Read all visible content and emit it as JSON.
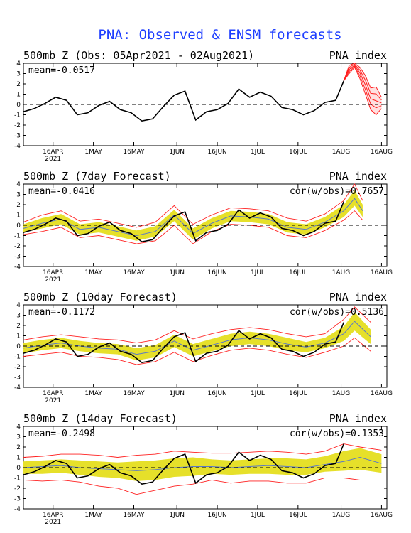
{
  "title": "PNA: Observed & ENSM forecasts",
  "colors": {
    "title": "#1f3fff",
    "observed": "#000000",
    "ensemble_mean": "#5a78c8",
    "spread_band": "#e6e02a",
    "extreme_members": "#ff2020"
  },
  "x_ticks": [
    "16APR",
    "1MAY",
    "16MAY",
    "1JUN",
    "16JUN",
    "1JUL",
    "16JUL",
    "1AUG",
    "16AUG"
  ],
  "year_label": "2021",
  "panels": [
    {
      "title": "500mb Z (Obs: 05Apr2021 - 02Aug2021)",
      "index_label": "PNA index",
      "mean_label": "mean=-0.0517",
      "cor_label": ""
    },
    {
      "title": "500mb Z (7day Forecast)",
      "index_label": "PNA index",
      "mean_label": "mean=-0.0416",
      "cor_label": "cor(w/obs)=0.7657"
    },
    {
      "title": "500mb Z (10day Forecast)",
      "index_label": "PNA index",
      "mean_label": "mean=-0.1172",
      "cor_label": "cor(w/obs)=0.5136"
    },
    {
      "title": "500mb Z (14day Forecast)",
      "index_label": "PNA index",
      "mean_label": "mean=-0.2498",
      "cor_label": "cor(w/obs)=0.1353"
    }
  ],
  "chart_data": {
    "type": "line",
    "ylim": [
      -4,
      4
    ],
    "y_ticks": [
      4,
      3,
      2,
      1,
      0,
      -1,
      -2,
      -3,
      -4
    ],
    "x_range": [
      "2021-04-05",
      "2021-08-18"
    ],
    "observed": {
      "name": "Obs",
      "dates": [
        "2021-04-05",
        "2021-04-09",
        "2021-04-13",
        "2021-04-17",
        "2021-04-21",
        "2021-04-25",
        "2021-04-29",
        "2021-05-03",
        "2021-05-07",
        "2021-05-11",
        "2021-05-15",
        "2021-05-19",
        "2021-05-23",
        "2021-05-27",
        "2021-05-31",
        "2021-06-04",
        "2021-06-08",
        "2021-06-12",
        "2021-06-16",
        "2021-06-20",
        "2021-06-24",
        "2021-06-28",
        "2021-07-02",
        "2021-07-06",
        "2021-07-10",
        "2021-07-14",
        "2021-07-18",
        "2021-07-22",
        "2021-07-26",
        "2021-07-30",
        "2021-08-02"
      ],
      "values": [
        -0.7,
        -0.4,
        0.1,
        0.7,
        0.4,
        -1.0,
        -0.8,
        -0.1,
        0.3,
        -0.5,
        -0.8,
        -1.6,
        -1.4,
        -0.2,
        0.9,
        1.3,
        -1.5,
        -0.7,
        -0.5,
        0.1,
        1.5,
        0.7,
        1.2,
        0.8,
        -0.3,
        -0.5,
        -1.0,
        -0.6,
        0.2,
        0.4,
        2.3
      ]
    },
    "ensm_forecast_panel1": {
      "dates": [
        "2021-08-02",
        "2021-08-04",
        "2021-08-06",
        "2021-08-08",
        "2021-08-10",
        "2021-08-12",
        "2021-08-14",
        "2021-08-16"
      ],
      "members_low": [
        2.3,
        3.0,
        3.6,
        2.5,
        1.0,
        -0.5,
        -1.0,
        -0.4
      ],
      "members_high": [
        2.3,
        3.8,
        4.0,
        3.6,
        2.8,
        1.6,
        1.7,
        0.7
      ]
    },
    "forecast_panels": [
      {
        "lead": "7day",
        "dates": [
          "2021-04-05",
          "2021-04-12",
          "2021-04-19",
          "2021-04-26",
          "2021-05-03",
          "2021-05-10",
          "2021-05-17",
          "2021-05-24",
          "2021-05-31",
          "2021-06-07",
          "2021-06-14",
          "2021-06-21",
          "2021-06-28",
          "2021-07-05",
          "2021-07-12",
          "2021-07-19",
          "2021-07-26",
          "2021-08-02",
          "2021-08-06",
          "2021-08-09"
        ],
        "mean": [
          -0.3,
          0.2,
          0.6,
          -0.4,
          -0.2,
          -0.6,
          -1.0,
          -0.6,
          1.0,
          -0.8,
          0.2,
          0.9,
          0.8,
          0.6,
          -0.2,
          -0.4,
          0.3,
          1.4,
          2.6,
          1.4
        ],
        "band_low": [
          -0.7,
          -0.3,
          0.1,
          -0.9,
          -0.7,
          -1.1,
          -1.5,
          -1.1,
          0.4,
          -1.4,
          -0.3,
          0.4,
          0.3,
          0.1,
          -0.7,
          -0.9,
          -0.2,
          0.8,
          1.9,
          0.8
        ],
        "band_high": [
          0.1,
          0.7,
          1.1,
          0.1,
          0.3,
          -0.1,
          -0.5,
          -0.1,
          1.5,
          -0.3,
          0.7,
          1.4,
          1.3,
          1.1,
          0.3,
          0.1,
          0.8,
          2.0,
          3.4,
          2.0
        ],
        "red_low": [
          -0.9,
          -0.6,
          -0.2,
          -1.2,
          -1.0,
          -1.4,
          -1.8,
          -1.5,
          0.0,
          -1.8,
          -0.6,
          0.1,
          0.0,
          -0.2,
          -1.0,
          -1.2,
          -0.5,
          0.5,
          1.4,
          0.5
        ],
        "red_high": [
          0.3,
          1.0,
          1.4,
          0.4,
          0.6,
          0.2,
          -0.2,
          0.3,
          1.9,
          0.1,
          1.0,
          1.7,
          1.6,
          1.4,
          0.7,
          0.4,
          1.1,
          2.4,
          4.0,
          2.4
        ]
      },
      {
        "lead": "10day",
        "dates": [
          "2021-04-05",
          "2021-04-12",
          "2021-04-19",
          "2021-04-26",
          "2021-05-03",
          "2021-05-10",
          "2021-05-17",
          "2021-05-24",
          "2021-05-31",
          "2021-06-07",
          "2021-06-14",
          "2021-06-21",
          "2021-06-28",
          "2021-07-05",
          "2021-07-12",
          "2021-07-19",
          "2021-07-26",
          "2021-08-02",
          "2021-08-06",
          "2021-08-12"
        ],
        "mean": [
          -0.2,
          0.1,
          0.3,
          0.0,
          -0.2,
          -0.3,
          -0.8,
          -0.5,
          0.5,
          -0.4,
          0.1,
          0.6,
          0.8,
          0.6,
          0.2,
          -0.1,
          0.3,
          1.2,
          2.4,
          0.9
        ],
        "band_low": [
          -0.7,
          -0.4,
          -0.2,
          -0.5,
          -0.7,
          -0.8,
          -1.4,
          -1.1,
          -0.1,
          -1.0,
          -0.5,
          0.0,
          0.2,
          0.0,
          -0.4,
          -0.6,
          -0.2,
          0.5,
          1.5,
          0.2
        ],
        "band_high": [
          0.3,
          0.6,
          0.8,
          0.5,
          0.3,
          0.2,
          -0.2,
          0.1,
          1.1,
          0.2,
          0.7,
          1.2,
          1.4,
          1.2,
          0.8,
          0.4,
          0.8,
          1.9,
          3.3,
          1.6
        ],
        "red_low": [
          -1.0,
          -0.8,
          -0.6,
          -1.0,
          -1.1,
          -1.3,
          -1.8,
          -1.5,
          -0.6,
          -1.5,
          -0.9,
          -0.4,
          -0.2,
          -0.4,
          -0.8,
          -1.1,
          -0.6,
          0.0,
          0.8,
          -0.5
        ],
        "red_high": [
          0.6,
          0.9,
          1.1,
          0.9,
          0.7,
          0.6,
          0.3,
          0.6,
          1.5,
          0.7,
          1.2,
          1.6,
          1.8,
          1.6,
          1.2,
          0.9,
          1.2,
          2.6,
          3.8,
          2.3
        ]
      },
      {
        "lead": "14day",
        "dates": [
          "2021-04-05",
          "2021-04-12",
          "2021-04-19",
          "2021-04-26",
          "2021-05-03",
          "2021-05-10",
          "2021-05-17",
          "2021-05-24",
          "2021-05-31",
          "2021-06-07",
          "2021-06-14",
          "2021-06-21",
          "2021-06-28",
          "2021-07-05",
          "2021-07-12",
          "2021-07-19",
          "2021-07-26",
          "2021-08-02",
          "2021-08-08",
          "2021-08-16"
        ],
        "mean": [
          0.0,
          0.1,
          0.2,
          0.0,
          -0.1,
          -0.2,
          -0.3,
          -0.2,
          0.0,
          0.1,
          0.1,
          0.0,
          0.1,
          0.2,
          0.1,
          0.0,
          0.3,
          0.6,
          1.0,
          0.4
        ],
        "band_low": [
          -0.6,
          -0.6,
          -0.5,
          -0.7,
          -0.9,
          -1.0,
          -1.3,
          -1.2,
          -0.9,
          -0.8,
          -0.6,
          -0.7,
          -0.6,
          -0.6,
          -0.7,
          -0.7,
          -0.4,
          -0.3,
          -0.2,
          -0.5
        ],
        "band_high": [
          0.6,
          0.7,
          0.8,
          0.7,
          0.6,
          0.5,
          0.6,
          0.7,
          0.9,
          1.0,
          0.8,
          0.7,
          0.8,
          0.9,
          0.9,
          0.8,
          1.1,
          1.6,
          1.9,
          1.3
        ],
        "red_low": [
          -1.2,
          -1.3,
          -1.2,
          -1.4,
          -1.8,
          -2.0,
          -2.6,
          -2.2,
          -1.8,
          -1.6,
          -1.2,
          -1.5,
          -1.3,
          -1.3,
          -1.5,
          -1.5,
          -1.0,
          -1.0,
          -1.2,
          -1.2
        ],
        "red_high": [
          1.0,
          1.1,
          1.3,
          1.3,
          1.2,
          1.0,
          1.2,
          1.3,
          1.6,
          1.5,
          1.4,
          1.4,
          1.5,
          1.6,
          1.5,
          1.3,
          1.6,
          2.3,
          2.0,
          1.7
        ]
      }
    ]
  }
}
